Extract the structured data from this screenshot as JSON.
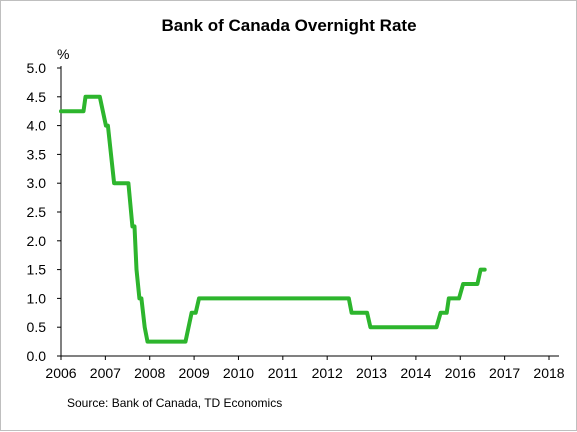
{
  "chart_data": {
    "type": "line",
    "title": "Bank of Canada Overnight Rate",
    "ylabel": "%",
    "xlabel": "",
    "source": "Source: Bank of Canada, TD Economics",
    "ylim": [
      0,
      5.0
    ],
    "xlim": [
      2006,
      2018.2
    ],
    "yticks": [
      "0.0",
      "0.5",
      "1.0",
      "1.5",
      "2.0",
      "2.5",
      "3.0",
      "3.5",
      "4.0",
      "4.5",
      "5.0"
    ],
    "xticks": [
      "2006",
      "2007",
      "2008",
      "2009",
      "2010",
      "2011",
      "2012",
      "2013",
      "2014",
      "2016",
      "2017",
      "2018"
    ],
    "grid": false,
    "legend": "none",
    "series": [
      {
        "color": "#2db52d",
        "points": [
          [
            2006.0,
            4.25
          ],
          [
            2006.55,
            4.25
          ],
          [
            2006.6,
            4.5
          ],
          [
            2006.95,
            4.5
          ],
          [
            2007.1,
            4.0
          ],
          [
            2007.15,
            4.0
          ],
          [
            2007.3,
            3.0
          ],
          [
            2007.65,
            3.0
          ],
          [
            2007.75,
            2.25
          ],
          [
            2007.8,
            2.25
          ],
          [
            2007.85,
            1.5
          ],
          [
            2007.92,
            1.0
          ],
          [
            2007.97,
            1.0
          ],
          [
            2008.05,
            0.5
          ],
          [
            2008.12,
            0.25
          ],
          [
            2009.05,
            0.25
          ],
          [
            2009.2,
            0.75
          ],
          [
            2009.3,
            0.75
          ],
          [
            2009.38,
            1.0
          ],
          [
            2013.05,
            1.0
          ],
          [
            2013.12,
            0.75
          ],
          [
            2013.5,
            0.75
          ],
          [
            2013.58,
            0.5
          ],
          [
            2015.2,
            0.5
          ],
          [
            2015.3,
            0.75
          ],
          [
            2015.45,
            0.75
          ],
          [
            2015.5,
            1.0
          ],
          [
            2015.75,
            1.0
          ],
          [
            2015.85,
            1.25
          ],
          [
            2016.2,
            1.25
          ],
          [
            2016.28,
            1.5
          ],
          [
            2016.38,
            1.5
          ]
        ]
      }
    ]
  }
}
